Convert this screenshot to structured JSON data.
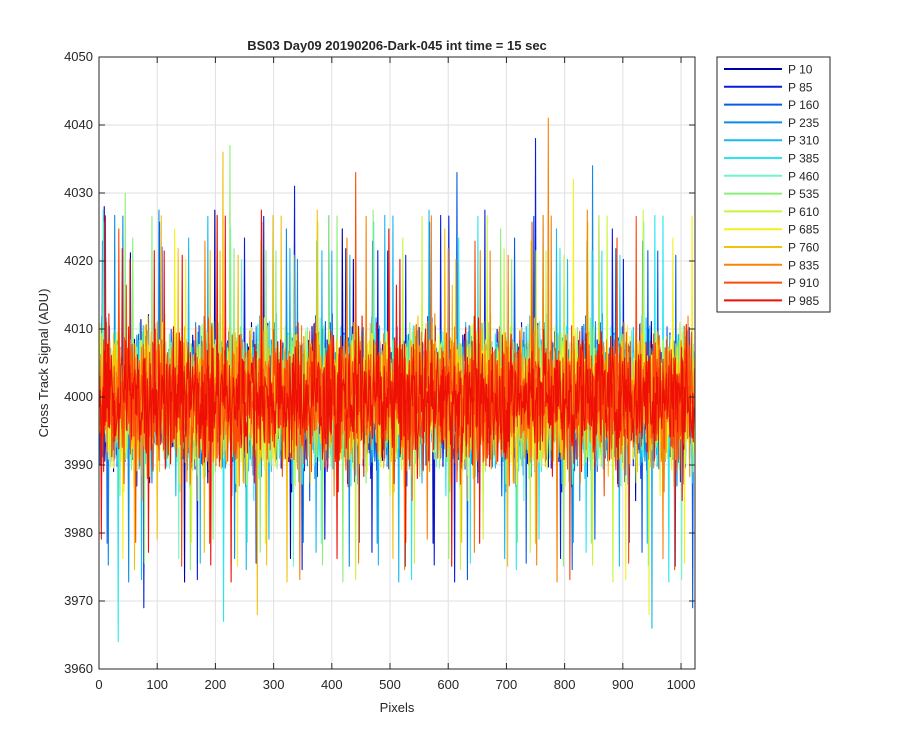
{
  "chart_data": {
    "type": "line",
    "title": "BS03 Day09 20190206-Dark-045 int time = 15 sec",
    "xlabel": "Pixels",
    "ylabel": "Cross Track Signal (ADU)",
    "xlim": [
      0,
      1024
    ],
    "ylim": [
      3960,
      4050
    ],
    "xticks": [
      0,
      100,
      200,
      300,
      400,
      500,
      600,
      700,
      800,
      900,
      1000
    ],
    "yticks": [
      3960,
      3970,
      3980,
      3990,
      4000,
      4010,
      4020,
      4030,
      4040,
      4050
    ],
    "grid": true,
    "legend_position": "outside-top-right",
    "noise_profile": {
      "mean": 4000,
      "typical_range": [
        3982,
        4020
      ]
    },
    "series": [
      {
        "name": "P 10",
        "color": "#0000aa"
      },
      {
        "name": "P 85",
        "color": "#0a1ed9"
      },
      {
        "name": "P 160",
        "color": "#0a5ae6"
      },
      {
        "name": "P 235",
        "color": "#0f8ae6"
      },
      {
        "name": "P 310",
        "color": "#19b8f0"
      },
      {
        "name": "P 385",
        "color": "#2ae6f0"
      },
      {
        "name": "P 460",
        "color": "#6ef5c8"
      },
      {
        "name": "P 535",
        "color": "#8cf078"
      },
      {
        "name": "P 610",
        "color": "#c8f53c"
      },
      {
        "name": "P 685",
        "color": "#f5f01e"
      },
      {
        "name": "P 760",
        "color": "#f5bf0f"
      },
      {
        "name": "P 835",
        "color": "#fa820a"
      },
      {
        "name": "P 910",
        "color": "#fa4b0a"
      },
      {
        "name": "P 985",
        "color": "#ee0f05"
      }
    ],
    "notable_peaks": [
      {
        "series": "P 835",
        "x": 772,
        "y": 4041
      },
      {
        "series": "P 85",
        "x": 750,
        "y": 4038
      },
      {
        "series": "P 535",
        "x": 225,
        "y": 4037
      },
      {
        "series": "P 760",
        "x": 213,
        "y": 4036
      },
      {
        "series": "P 235",
        "x": 848,
        "y": 4034
      },
      {
        "series": "P 160",
        "x": 615,
        "y": 4033
      },
      {
        "series": "P 910",
        "x": 441,
        "y": 4033
      },
      {
        "series": "P 85",
        "x": 336,
        "y": 4031
      },
      {
        "series": "P 685",
        "x": 815,
        "y": 4032
      },
      {
        "series": "P 535",
        "x": 45,
        "y": 4030
      }
    ],
    "notable_troughs": [
      {
        "series": "P 385",
        "x": 33,
        "y": 3964
      },
      {
        "series": "P 310",
        "x": 950,
        "y": 3966
      },
      {
        "series": "P 385",
        "x": 214,
        "y": 3967
      },
      {
        "series": "P 760",
        "x": 272,
        "y": 3968
      },
      {
        "series": "P 685",
        "x": 945,
        "y": 3968
      },
      {
        "series": "P 160",
        "x": 1020,
        "y": 3969
      },
      {
        "series": "P 85",
        "x": 77,
        "y": 3969
      }
    ]
  }
}
